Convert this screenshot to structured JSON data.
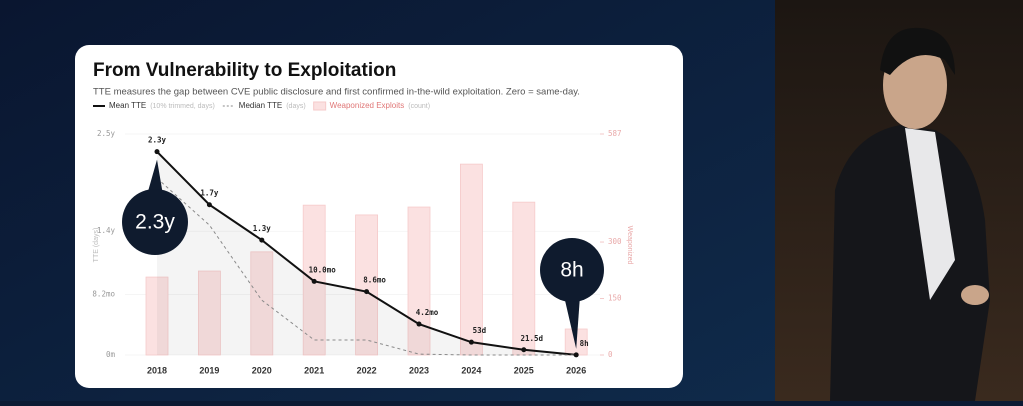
{
  "chart_data": {
    "type": "combo",
    "title": "From Vulnerability to Exploitation",
    "subtitle": "TTE measures the gap between CVE public disclosure and first confirmed in-the-wild exploitation. Zero = same-day.",
    "y_label": "TTE (days)",
    "y2_label": "Weaponized",
    "categories": [
      "2018",
      "2019",
      "2020",
      "2021",
      "2022",
      "2023",
      "2024",
      "2025",
      "2026"
    ],
    "ylim": [
      0,
      2.5
    ],
    "yticks": [
      {
        "value": 0,
        "label": "0m"
      },
      {
        "value": 0.6833,
        "label": "8.2mo"
      },
      {
        "value": 1.4,
        "label": "1.4y"
      },
      {
        "value": 2.5,
        "label": "2.5y"
      }
    ],
    "y2lim": [
      0,
      587
    ],
    "y2ticks": [
      0,
      150,
      300,
      587
    ],
    "series": [
      {
        "name": "Mean TTE",
        "legend_note": "(10% trimmed, days)",
        "type": "line",
        "color": "#111111",
        "values": [
          2.3,
          1.7,
          1.3,
          0.8333,
          0.7167,
          0.35,
          0.1451,
          0.0589,
          0.000913
        ],
        "value_labels": [
          "2.3y",
          "1.7y",
          "1.3y",
          "10.0mo",
          "8.6mo",
          "4.2mo",
          "53d",
          "21.5d",
          "8h"
        ]
      },
      {
        "name": "Median TTE",
        "legend_note": "(days)",
        "type": "line",
        "dashed": true,
        "color": "#8a8a8a",
        "values": [
          2.0,
          1.47,
          0.62,
          0.17,
          0.17,
          0.01,
          0,
          0,
          0
        ]
      },
      {
        "name": "Weaponized Exploits",
        "legend_note": "(count)",
        "type": "bar",
        "axis": "y2",
        "color": "#fbe1e1",
        "values": [
          207,
          223,
          274,
          398,
          372,
          393,
          507,
          406,
          69
        ]
      }
    ],
    "annotations": [
      "2.3y",
      "8h"
    ]
  }
}
